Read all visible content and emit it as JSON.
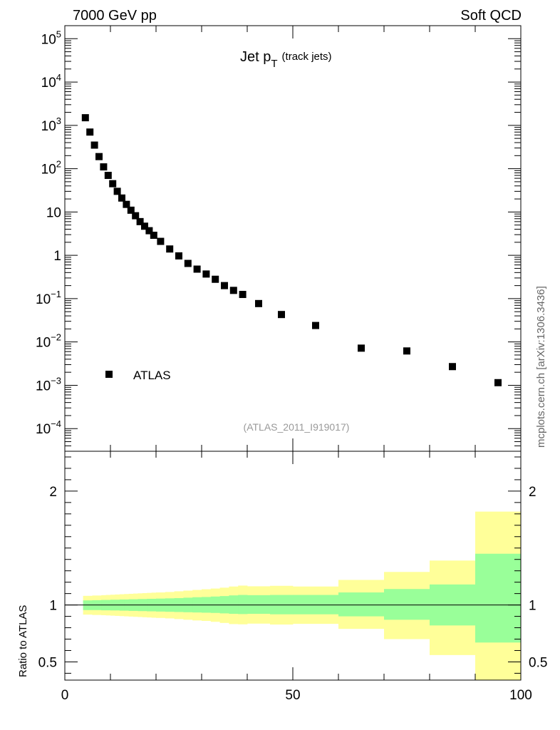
{
  "header": {
    "left": "7000 GeV pp",
    "right": "Soft QCD"
  },
  "title": {
    "main": "Jet p",
    "sub_T": "T",
    "paren": "(track jets)"
  },
  "side_label": "mcplots.cern.ch [arXiv:1306.3436]",
  "analysis_id": "(ATLAS_2011_I919017)",
  "colors": {
    "marker": "#000000",
    "band_inner": "#99ff99",
    "band_outer": "#ffff99",
    "axis": "#000000"
  },
  "chart_data": [
    {
      "type": "scatter",
      "name": "main",
      "log_y": true,
      "xlim": [
        0,
        100
      ],
      "ylim": [
        3e-05,
        200000
      ],
      "legend": {
        "placement": "bottom-left",
        "entries": [
          "ATLAS"
        ]
      },
      "y_tick_labels": [
        {
          "v": 100000,
          "base": "10",
          "exp": "5"
        },
        {
          "v": 10000,
          "base": "10",
          "exp": "4"
        },
        {
          "v": 1000,
          "base": "10",
          "exp": "3"
        },
        {
          "v": 100,
          "base": "10",
          "exp": "2"
        },
        {
          "v": 10,
          "base": "10",
          "exp": ""
        },
        {
          "v": 1,
          "base": "1",
          "exp": ""
        },
        {
          "v": 0.1,
          "base": "10",
          "exp": "−1"
        },
        {
          "v": 0.01,
          "base": "10",
          "exp": "−2"
        },
        {
          "v": 0.001,
          "base": "10",
          "exp": "−3"
        },
        {
          "v": 0.0001,
          "base": "10",
          "exp": "−4"
        }
      ],
      "series": [
        {
          "name": "ATLAS",
          "x": [
            4.5,
            5.5,
            6.5,
            7.5,
            8.5,
            9.5,
            10.5,
            11.5,
            12.5,
            13.5,
            14.5,
            15.5,
            16.5,
            17.5,
            18.5,
            19.5,
            21,
            23,
            25,
            27,
            29,
            31,
            33,
            35,
            37,
            39,
            42.5,
            47.5,
            55,
            65,
            75,
            85,
            95
          ],
          "y": [
            1500,
            700,
            350,
            190,
            110,
            70,
            45,
            30,
            21,
            15,
            11,
            8.2,
            6.0,
            4.7,
            3.7,
            2.9,
            2.1,
            1.4,
            0.97,
            0.65,
            0.48,
            0.37,
            0.28,
            0.2,
            0.155,
            0.125,
            0.077,
            0.043,
            0.024,
            0.0072,
            0.0062,
            0.0027,
            0.00115
          ]
        }
      ]
    },
    {
      "type": "area",
      "name": "ratio",
      "ylabel": "Ratio to ATLAS",
      "xlim": [
        0,
        100
      ],
      "ylim": [
        0.34,
        2.35
      ],
      "x_tick_labels": [
        "0",
        "50",
        "100"
      ],
      "y_tick_labels": [
        "0.5",
        "1",
        "2"
      ],
      "reference_line": 1,
      "bins": [
        {
          "lo": 4,
          "hi": 5,
          "inner": [
            0.955,
            1.04
          ],
          "outer": [
            0.915,
            1.08
          ]
        },
        {
          "lo": 5,
          "hi": 6,
          "inner": [
            0.955,
            1.04
          ],
          "outer": [
            0.915,
            1.08
          ]
        },
        {
          "lo": 6,
          "hi": 7,
          "inner": [
            0.955,
            1.042
          ],
          "outer": [
            0.912,
            1.083
          ]
        },
        {
          "lo": 7,
          "hi": 8,
          "inner": [
            0.955,
            1.042
          ],
          "outer": [
            0.912,
            1.083
          ]
        },
        {
          "lo": 8,
          "hi": 9,
          "inner": [
            0.953,
            1.044
          ],
          "outer": [
            0.91,
            1.086
          ]
        },
        {
          "lo": 9,
          "hi": 10,
          "inner": [
            0.953,
            1.044
          ],
          "outer": [
            0.908,
            1.088
          ]
        },
        {
          "lo": 10,
          "hi": 11,
          "inner": [
            0.952,
            1.046
          ],
          "outer": [
            0.906,
            1.09
          ]
        },
        {
          "lo": 11,
          "hi": 12,
          "inner": [
            0.952,
            1.046
          ],
          "outer": [
            0.904,
            1.092
          ]
        },
        {
          "lo": 12,
          "hi": 13,
          "inner": [
            0.95,
            1.048
          ],
          "outer": [
            0.902,
            1.094
          ]
        },
        {
          "lo": 13,
          "hi": 14,
          "inner": [
            0.95,
            1.048
          ],
          "outer": [
            0.9,
            1.096
          ]
        },
        {
          "lo": 14,
          "hi": 15,
          "inner": [
            0.948,
            1.05
          ],
          "outer": [
            0.898,
            1.098
          ]
        },
        {
          "lo": 15,
          "hi": 16,
          "inner": [
            0.948,
            1.05
          ],
          "outer": [
            0.896,
            1.1
          ]
        },
        {
          "lo": 16,
          "hi": 17,
          "inner": [
            0.946,
            1.052
          ],
          "outer": [
            0.894,
            1.102
          ]
        },
        {
          "lo": 17,
          "hi": 18,
          "inner": [
            0.946,
            1.052
          ],
          "outer": [
            0.892,
            1.104
          ]
        },
        {
          "lo": 18,
          "hi": 19,
          "inner": [
            0.944,
            1.054
          ],
          "outer": [
            0.89,
            1.106
          ]
        },
        {
          "lo": 19,
          "hi": 20,
          "inner": [
            0.944,
            1.054
          ],
          "outer": [
            0.888,
            1.108
          ]
        },
        {
          "lo": 20,
          "hi": 22,
          "inner": [
            0.942,
            1.056
          ],
          "outer": [
            0.886,
            1.11
          ]
        },
        {
          "lo": 22,
          "hi": 24,
          "inner": [
            0.94,
            1.058
          ],
          "outer": [
            0.882,
            1.114
          ]
        },
        {
          "lo": 24,
          "hi": 26,
          "inner": [
            0.938,
            1.06
          ],
          "outer": [
            0.876,
            1.12
          ]
        },
        {
          "lo": 26,
          "hi": 28,
          "inner": [
            0.936,
            1.064
          ],
          "outer": [
            0.87,
            1.126
          ]
        },
        {
          "lo": 28,
          "hi": 30,
          "inner": [
            0.934,
            1.068
          ],
          "outer": [
            0.864,
            1.132
          ]
        },
        {
          "lo": 30,
          "hi": 32,
          "inner": [
            0.932,
            1.07
          ],
          "outer": [
            0.86,
            1.138
          ]
        },
        {
          "lo": 32,
          "hi": 34,
          "inner": [
            0.93,
            1.074
          ],
          "outer": [
            0.852,
            1.144
          ]
        },
        {
          "lo": 34,
          "hi": 36,
          "inner": [
            0.926,
            1.078
          ],
          "outer": [
            0.842,
            1.152
          ]
        },
        {
          "lo": 36,
          "hi": 38,
          "inner": [
            0.922,
            1.084
          ],
          "outer": [
            0.832,
            1.162
          ]
        },
        {
          "lo": 38,
          "hi": 40,
          "inner": [
            0.92,
            1.088
          ],
          "outer": [
            0.83,
            1.17
          ]
        },
        {
          "lo": 40,
          "hi": 45,
          "inner": [
            0.922,
            1.086
          ],
          "outer": [
            0.836,
            1.164
          ]
        },
        {
          "lo": 45,
          "hi": 50,
          "inner": [
            0.918,
            1.088
          ],
          "outer": [
            0.828,
            1.168
          ]
        },
        {
          "lo": 50,
          "hi": 60,
          "inner": [
            0.918,
            1.088
          ],
          "outer": [
            0.834,
            1.162
          ]
        },
        {
          "lo": 60,
          "hi": 70,
          "inner": [
            0.9,
            1.11
          ],
          "outer": [
            0.79,
            1.22
          ]
        },
        {
          "lo": 70,
          "hi": 80,
          "inner": [
            0.87,
            1.14
          ],
          "outer": [
            0.7,
            1.29
          ]
        },
        {
          "lo": 80,
          "hi": 90,
          "inner": [
            0.82,
            1.18
          ],
          "outer": [
            0.56,
            1.39
          ]
        },
        {
          "lo": 90,
          "hi": 100,
          "inner": [
            0.67,
            1.45
          ],
          "outer": [
            0.3,
            1.82
          ]
        }
      ]
    }
  ]
}
